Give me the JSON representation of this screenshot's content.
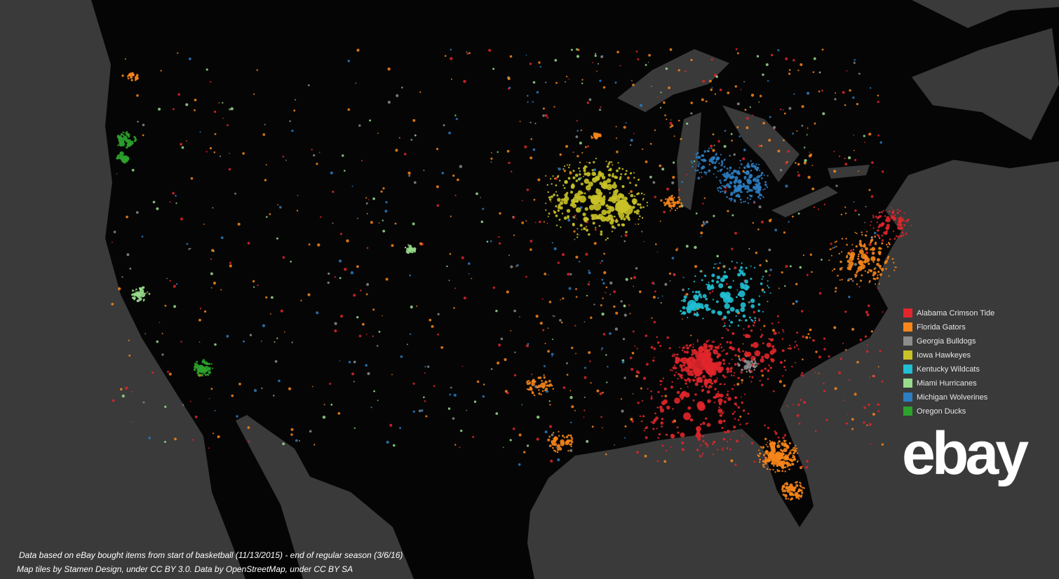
{
  "legend": {
    "items": [
      {
        "label": "Alabama Crimson Tide",
        "color": "#e0262b"
      },
      {
        "label": "Florida Gators",
        "color": "#f7861b"
      },
      {
        "label": "Georgia Bulldogs",
        "color": "#8c8c8c"
      },
      {
        "label": "Iowa Hawkeyes",
        "color": "#c9c227"
      },
      {
        "label": "Kentucky Wildcats",
        "color": "#20bfd3"
      },
      {
        "label": "Miami Hurricanes",
        "color": "#98dc8c"
      },
      {
        "label": "Michigan Wolverines",
        "color": "#2c7dc2"
      },
      {
        "label": "Oregon Ducks",
        "color": "#2ca32c"
      }
    ]
  },
  "logo": "ebay",
  "notes": [
    "Data based on eBay bought items from start of basketball (11/13/2015) - end of regular season (3/6/16)",
    "Map tiles by Stamen Design, under CC BY 3.0. Data by OpenStreetMap, under CC BY SA"
  ]
}
